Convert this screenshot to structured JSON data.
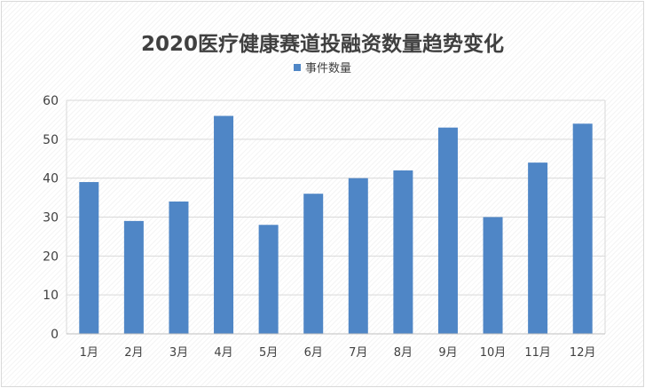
{
  "chart_data": {
    "type": "bar",
    "title": "2020医疗健康赛道投融资数量趋势变化",
    "categories": [
      "1月",
      "2月",
      "3月",
      "4月",
      "5月",
      "6月",
      "7月",
      "8月",
      "9月",
      "10月",
      "11月",
      "12月"
    ],
    "series": [
      {
        "name": "事件数量",
        "values": [
          39,
          29,
          34,
          56,
          28,
          36,
          40,
          42,
          53,
          30,
          44,
          54
        ]
      }
    ],
    "yticks": [
      "0",
      "10",
      "20",
      "30",
      "40",
      "50",
      "60"
    ],
    "ylim": [
      0,
      60
    ],
    "grid": true,
    "legend_position": "top-center",
    "bar_color": "#4f86c6",
    "grid_color": "#d9d9d9"
  }
}
